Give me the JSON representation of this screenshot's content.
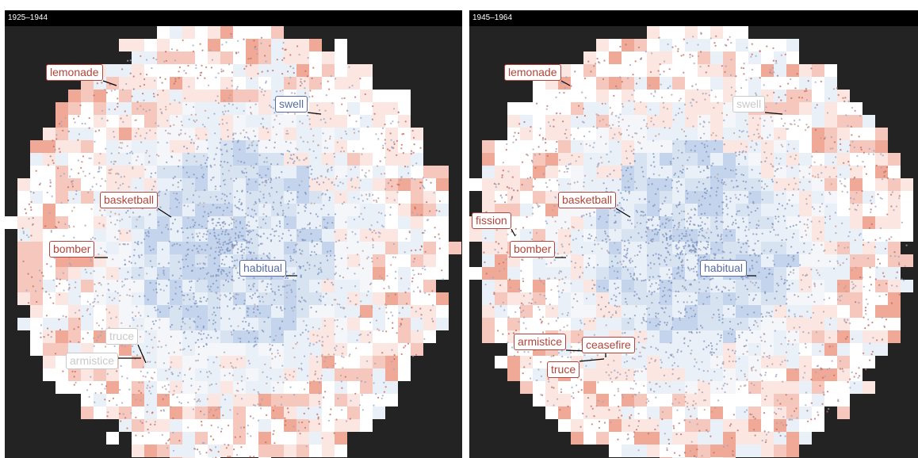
{
  "colors": {
    "background": "#232323",
    "title_bar": "#000000",
    "red": "#b2453b",
    "blue": "#566b9f",
    "pale": "#c9c9c9"
  },
  "panels": [
    {
      "title": "1925–1944",
      "labels": [
        {
          "text": "lemonade",
          "tone": "red"
        },
        {
          "text": "swell",
          "tone": "blue"
        },
        {
          "text": "basketball",
          "tone": "red"
        },
        {
          "text": "bomber",
          "tone": "red"
        },
        {
          "text": "habitual",
          "tone": "blue"
        },
        {
          "text": "truce",
          "tone": "pale"
        },
        {
          "text": "armistice",
          "tone": "pale"
        }
      ]
    },
    {
      "title": "1945–1964",
      "labels": [
        {
          "text": "lemonade",
          "tone": "red"
        },
        {
          "text": "swell",
          "tone": "pale"
        },
        {
          "text": "basketball",
          "tone": "red"
        },
        {
          "text": "fission",
          "tone": "red"
        },
        {
          "text": "bomber",
          "tone": "red"
        },
        {
          "text": "habitual",
          "tone": "blue"
        },
        {
          "text": "armistice",
          "tone": "red"
        },
        {
          "text": "ceasefire",
          "tone": "red"
        },
        {
          "text": "truce",
          "tone": "red"
        }
      ]
    }
  ]
}
